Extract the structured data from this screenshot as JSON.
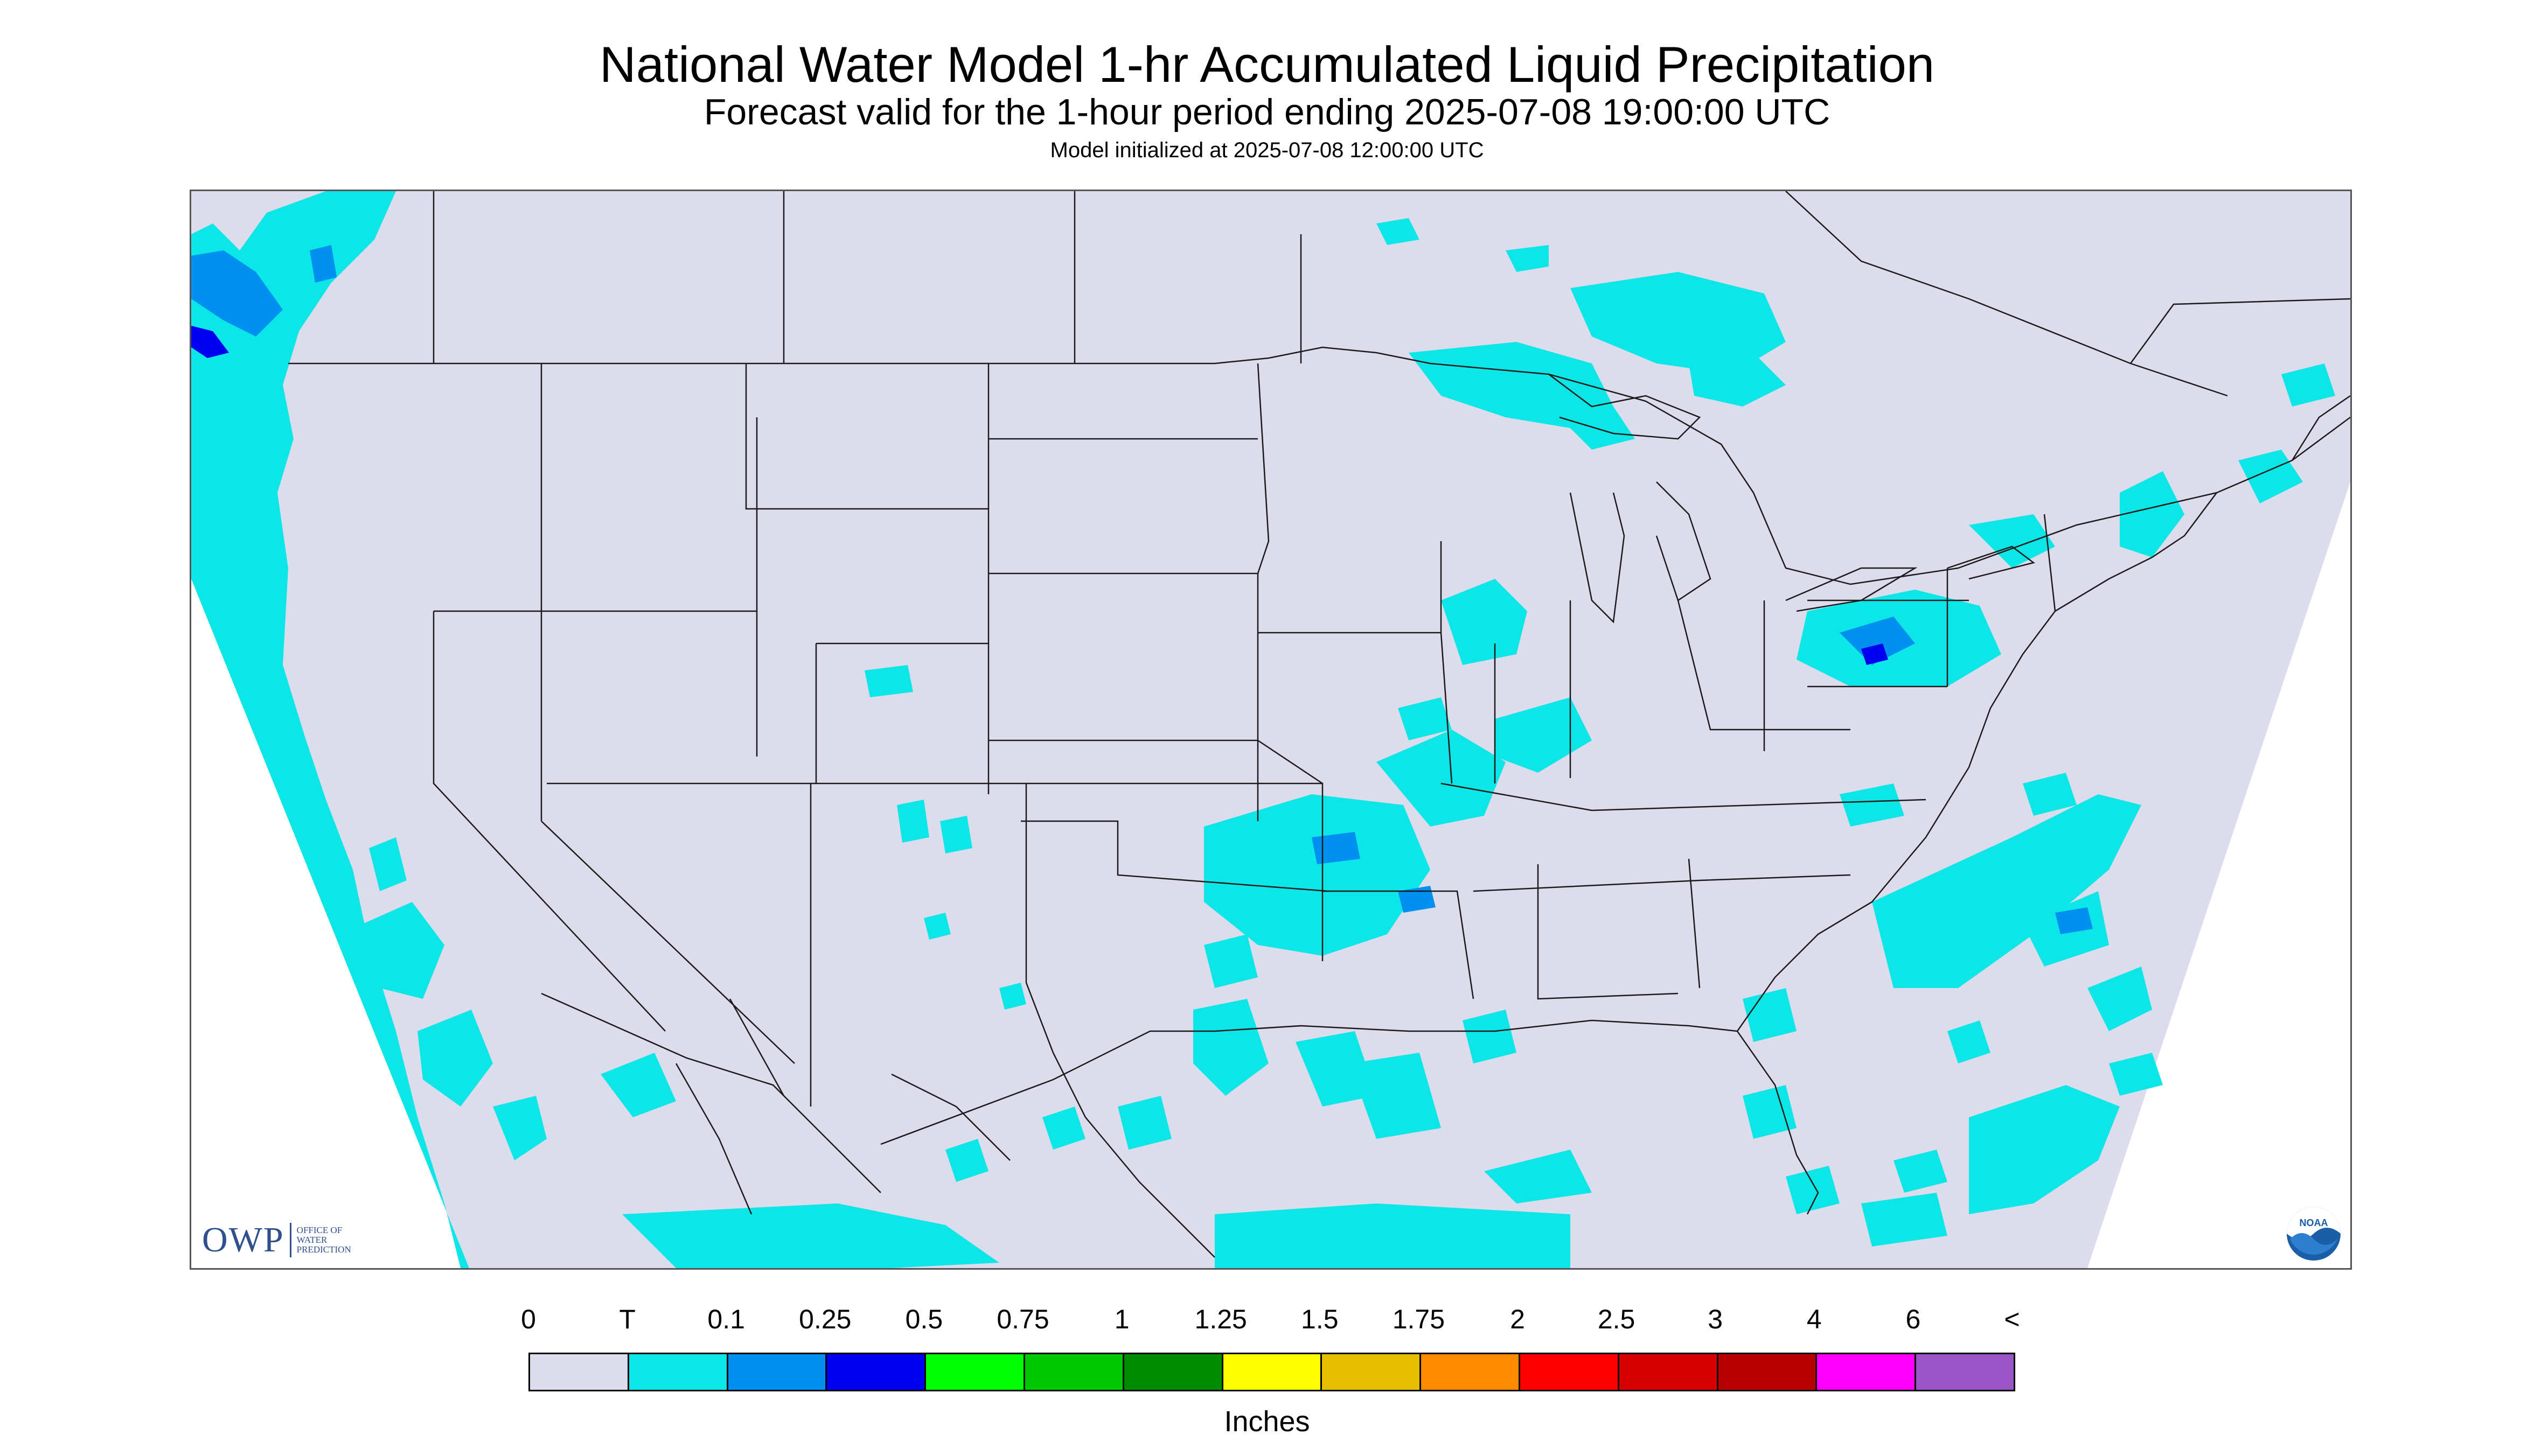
{
  "header": {
    "title": "National Water Model 1-hr Accumulated Liquid Precipitation",
    "subtitle": "Forecast valid for the 1-hour period ending 2025-07-08 19:00:00 UTC",
    "init": "Model initialized at 2025-07-08 12:00:00 UTC"
  },
  "map": {
    "background_color": "#dcdced",
    "outside_color": "#ffffff",
    "border_color": "#1a1a1a",
    "precip_light_color": "#0de6e6",
    "precip_medium_color": "#0090f0",
    "precip_heavy_color": "#0000f0"
  },
  "logos": {
    "owp_letters": "OWP",
    "owp_words": "OFFICE OF WATER PREDICTION",
    "noaa_icon": "noaa-logo-icon",
    "noaa_text": "NOAA"
  },
  "legend": {
    "labels": [
      "0",
      "T",
      "0.1",
      "0.25",
      "0.5",
      "0.75",
      "1",
      "1.25",
      "1.5",
      "1.75",
      "2",
      "2.5",
      "3",
      "4",
      "6",
      "<"
    ],
    "colors": [
      "#dcdced",
      "#0de6e6",
      "#0090f0",
      "#0000f0",
      "#00ff00",
      "#00c800",
      "#008c00",
      "#ffff00",
      "#e6c000",
      "#ff8c00",
      "#ff0000",
      "#d80000",
      "#b80000",
      "#ff00ff",
      "#9a55c9"
    ],
    "units": "Inches"
  }
}
